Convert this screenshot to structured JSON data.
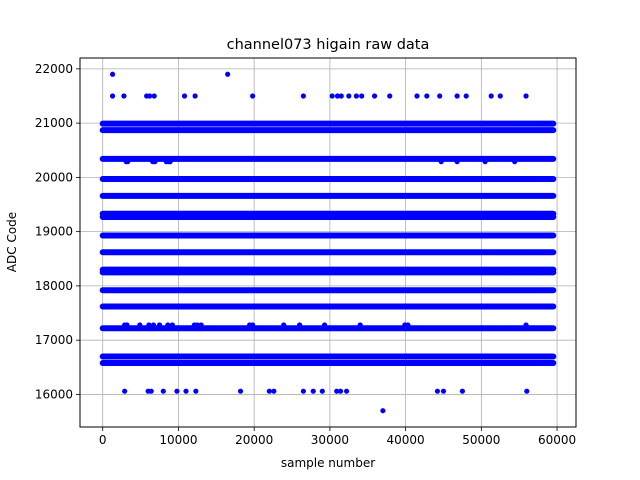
{
  "chart_data": {
    "type": "scatter",
    "title": "channel073 higain raw data",
    "xlabel": "sample number",
    "ylabel": "ADC Code",
    "xlim": [
      -3000,
      62500
    ],
    "ylim": [
      15400,
      22200
    ],
    "x_ticks": [
      0,
      10000,
      20000,
      30000,
      40000,
      50000,
      60000
    ],
    "y_ticks": [
      16000,
      17000,
      18000,
      19000,
      20000,
      21000,
      22000
    ],
    "grid": true,
    "marker_color": "#0000ff",
    "x_range": [
      0,
      59500
    ],
    "bands": [
      16580,
      16700,
      17220,
      17620,
      17920,
      18250,
      18300,
      18620,
      18930,
      19270,
      19330,
      19660,
      19970,
      20340,
      20870,
      20990
    ],
    "series": [
      {
        "name": "",
        "x": [
          1300,
          16500,
          1300,
          2800,
          5800,
          6200,
          6800,
          10800,
          12200,
          19800,
          26500,
          30300,
          31000,
          31500,
          32500,
          33500,
          34200,
          35900,
          37900,
          41500,
          42800,
          44500,
          46800,
          48000,
          51300,
          52500,
          55900,
          3100,
          3300,
          6600,
          6900,
          8400,
          8700,
          8900,
          44700,
          46800,
          50500,
          54400,
          2900,
          3200,
          4900,
          6100,
          6700,
          7500,
          8600,
          9200,
          12100,
          12500,
          13000,
          19400,
          19800,
          23900,
          26000,
          29300,
          34000,
          39900,
          40300,
          55900,
          2900,
          6000,
          6400,
          8000,
          9800,
          11000,
          12300,
          18200,
          22000,
          22600,
          26500,
          27800,
          29000,
          30900,
          31400,
          32200,
          44200,
          45000,
          47500,
          56000,
          37000
        ],
        "y": [
          21900,
          21900,
          21500,
          21500,
          21500,
          21500,
          21500,
          21500,
          21500,
          21500,
          21500,
          21500,
          21500,
          21500,
          21500,
          21500,
          21500,
          21500,
          21500,
          21500,
          21500,
          21500,
          21500,
          21500,
          21500,
          21500,
          21500,
          20290,
          20290,
          20290,
          20290,
          20290,
          20290,
          20290,
          20290,
          20290,
          20290,
          20290,
          17280,
          17280,
          17280,
          17280,
          17280,
          17280,
          17280,
          17280,
          17280,
          17280,
          17280,
          17280,
          17280,
          17280,
          17280,
          17280,
          17280,
          17280,
          17280,
          17280,
          16060,
          16060,
          16060,
          16060,
          16060,
          16060,
          16060,
          16060,
          16060,
          16060,
          16060,
          16060,
          16060,
          16060,
          16060,
          16060,
          16060,
          16060,
          16060,
          16060,
          15700
        ]
      }
    ]
  }
}
